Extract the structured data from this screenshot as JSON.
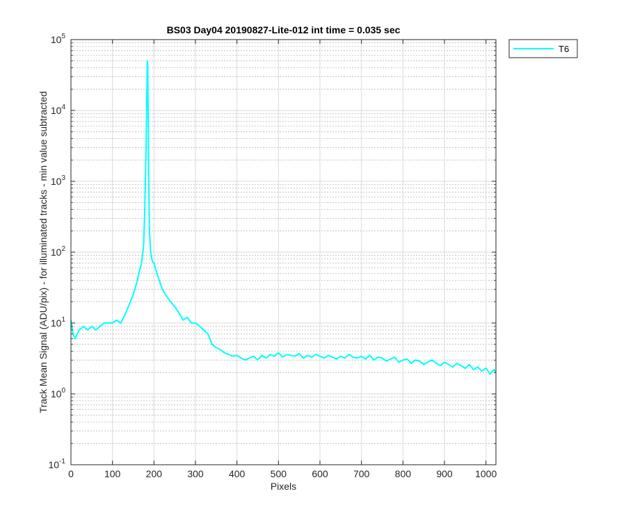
{
  "chart_data": {
    "type": "line",
    "title": "BS03 Day04 20190827-Lite-012 int time = 0.035 sec",
    "xlabel": "Pixels",
    "ylabel": "Track Mean Signal (ADU/pix) - for illuminated tracks - min value subtracted",
    "xlim": [
      0,
      1024
    ],
    "ylim": [
      0.1,
      100000
    ],
    "yscale": "log",
    "grid": true,
    "minor_grid": true,
    "legend_placement": "outside-top-right",
    "x_ticks": [
      "0",
      "100",
      "200",
      "300",
      "400",
      "500",
      "600",
      "700",
      "800",
      "900",
      "1000"
    ],
    "y_ticks": [
      {
        "base": "10",
        "exp": "-1"
      },
      {
        "base": "10",
        "exp": "0"
      },
      {
        "base": "10",
        "exp": "1"
      },
      {
        "base": "10",
        "exp": "2"
      },
      {
        "base": "10",
        "exp": "3"
      },
      {
        "base": "10",
        "exp": "4"
      },
      {
        "base": "10",
        "exp": "5"
      }
    ],
    "series": [
      {
        "name": "T6",
        "color": "#00ffff",
        "x": [
          0,
          5,
          10,
          20,
          30,
          40,
          50,
          60,
          70,
          80,
          90,
          100,
          110,
          120,
          130,
          140,
          150,
          160,
          165,
          170,
          175,
          178,
          181,
          183,
          184,
          185,
          186,
          187,
          189,
          192,
          196,
          200,
          205,
          210,
          220,
          230,
          240,
          250,
          260,
          270,
          280,
          290,
          300,
          310,
          320,
          330,
          340,
          350,
          360,
          370,
          380,
          390,
          400,
          410,
          420,
          430,
          440,
          450,
          460,
          470,
          480,
          490,
          500,
          510,
          520,
          530,
          540,
          550,
          560,
          570,
          580,
          590,
          600,
          610,
          620,
          630,
          640,
          650,
          660,
          670,
          680,
          690,
          700,
          710,
          720,
          730,
          740,
          750,
          760,
          770,
          780,
          790,
          800,
          810,
          820,
          830,
          840,
          850,
          860,
          870,
          880,
          890,
          900,
          910,
          920,
          930,
          940,
          950,
          960,
          970,
          980,
          990,
          1000,
          1010,
          1020,
          1024
        ],
        "y": [
          11,
          7,
          6,
          8,
          9,
          8,
          9,
          8,
          9,
          10,
          10,
          10,
          11,
          10,
          13,
          18,
          25,
          40,
          55,
          70,
          120,
          400,
          3000,
          20000,
          50000,
          45000,
          10000,
          1500,
          200,
          100,
          75,
          70,
          55,
          45,
          30,
          24,
          20,
          17,
          14,
          11,
          12,
          10,
          10,
          9,
          8,
          7,
          5,
          4.5,
          4.2,
          3.8,
          3.6,
          3.4,
          3.5,
          3.2,
          3.0,
          3.2,
          3.4,
          3.0,
          3.5,
          3.2,
          3.6,
          3.4,
          3.8,
          3.3,
          3.6,
          3.5,
          3.4,
          3.7,
          3.2,
          3.5,
          3.3,
          3.6,
          3.4,
          3.2,
          3.5,
          3.3,
          3.1,
          3.4,
          3.2,
          3.6,
          3.3,
          3.2,
          3.4,
          3.1,
          3.5,
          3.0,
          3.3,
          3.2,
          2.9,
          3.1,
          3.3,
          2.8,
          3.0,
          3.1,
          2.7,
          3.0,
          2.9,
          2.6,
          2.8,
          3.0,
          2.7,
          2.5,
          2.8,
          2.6,
          2.4,
          2.7,
          2.5,
          2.3,
          2.6,
          2.2,
          2.4,
          2.1,
          2.3,
          1.9,
          2.2,
          2.0
        ]
      }
    ]
  }
}
